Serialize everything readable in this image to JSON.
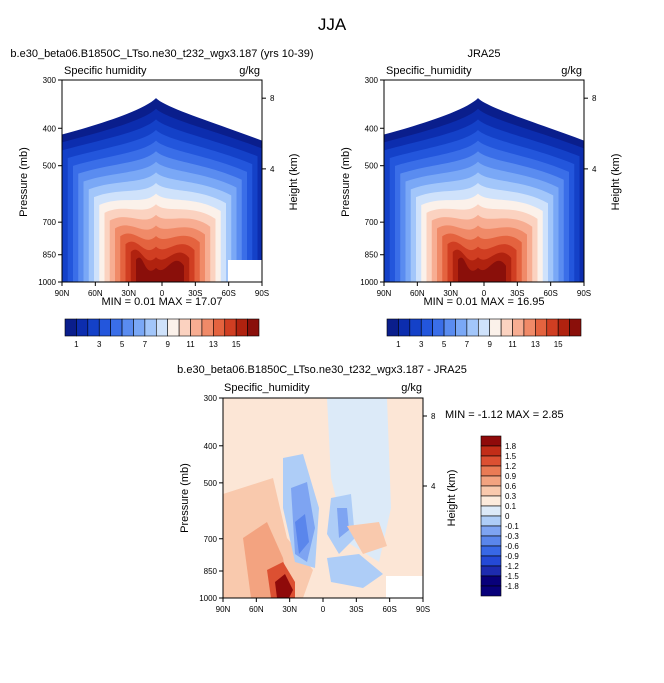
{
  "figure": {
    "title": "JJA"
  },
  "colors": {
    "sequential": [
      "#0a1e8c",
      "#0c2dae",
      "#1441c8",
      "#2356dc",
      "#3a6ee8",
      "#5a8cf0",
      "#7aa8f6",
      "#a2c6fa",
      "#cfe2fb",
      "#fbf1ea",
      "#fbd2c0",
      "#f7ad92",
      "#f08a68",
      "#e4633f",
      "#d03e22",
      "#b0220f",
      "#8a0f0a"
    ],
    "diverging": [
      "#08007a",
      "#1d2bb0",
      "#2449d6",
      "#3868e6",
      "#5a86ec",
      "#7ea4f2",
      "#aecdf7",
      "#dceaf8",
      "#fcebdc",
      "#f9c9ad",
      "#f3a380",
      "#ea7b55",
      "#dc5032",
      "#c22d18",
      "#8f0a0a"
    ]
  },
  "chart_data": [
    {
      "type": "heatmap",
      "panel": "model",
      "title": "b.e30_beta06.B1850C_LTso.ne30_t232_wgx3.187 (yrs 10-39)",
      "left_label": "Specific humidity",
      "right_label": "g/kg",
      "ylabel": "Pressure (mb)",
      "y2label": "Height (km)",
      "x_ticks": [
        "90N",
        "60N",
        "30N",
        "0",
        "30S",
        "60S",
        "90S"
      ],
      "x_tick_values": [
        90,
        60,
        30,
        0,
        -30,
        -60,
        -90
      ],
      "y_ticks": [
        "300",
        "400",
        "500",
        "700",
        "850",
        "1000"
      ],
      "y_tick_values": [
        300,
        400,
        500,
        700,
        850,
        1000
      ],
      "y2_ticks": [
        "8",
        "4"
      ],
      "y2_tick_values": [
        8,
        4
      ],
      "xlim": [
        90,
        -90
      ],
      "ylim": [
        1000,
        300
      ],
      "y_scale": "log",
      "stats": "MIN =  0.01  MAX =  17.07",
      "min": 0.01,
      "max": 17.07,
      "colorbar_labels": [
        "1",
        "3",
        "5",
        "7",
        "9",
        "11",
        "13",
        "15"
      ],
      "colorbar_levels": [
        0,
        1,
        2,
        3,
        4,
        5,
        6,
        7,
        8,
        9,
        10,
        11,
        12,
        13,
        14,
        15,
        16
      ],
      "masked": {
        "lat_range": [
          -55,
          -90
        ],
        "p_range": [
          1000,
          880
        ]
      }
    },
    {
      "type": "heatmap",
      "panel": "obs",
      "title": "JRA25",
      "left_label": "Specific_humidity",
      "right_label": "g/kg",
      "ylabel": "Pressure (mb)",
      "y2label": "Height (km)",
      "x_ticks": [
        "90N",
        "60N",
        "30N",
        "0",
        "30S",
        "60S",
        "90S"
      ],
      "x_tick_values": [
        90,
        60,
        30,
        0,
        -30,
        -60,
        -90
      ],
      "y_ticks": [
        "300",
        "400",
        "500",
        "700",
        "850",
        "1000"
      ],
      "y_tick_values": [
        300,
        400,
        500,
        700,
        850,
        1000
      ],
      "y2_ticks": [
        "8",
        "4"
      ],
      "y2_tick_values": [
        8,
        4
      ],
      "xlim": [
        90,
        -90
      ],
      "ylim": [
        1000,
        300
      ],
      "y_scale": "log",
      "stats": "MIN =  0.01  MAX =  16.95",
      "min": 0.01,
      "max": 16.95,
      "colorbar_labels": [
        "1",
        "3",
        "5",
        "7",
        "9",
        "11",
        "13",
        "15"
      ],
      "colorbar_levels": [
        0,
        1,
        2,
        3,
        4,
        5,
        6,
        7,
        8,
        9,
        10,
        11,
        12,
        13,
        14,
        15,
        16
      ]
    },
    {
      "type": "heatmap",
      "panel": "diff",
      "title": "b.e30_beta06.B1850C_LTso.ne30_t232_wgx3.187 - JRA25",
      "left_label": "Specific_humidity",
      "right_label": "g/kg",
      "ylabel": "Pressure (mb)",
      "y2label": "Height (km)",
      "x_ticks": [
        "90N",
        "60N",
        "30N",
        "0",
        "30S",
        "60S",
        "90S"
      ],
      "x_tick_values": [
        90,
        60,
        30,
        0,
        -30,
        -60,
        -90
      ],
      "y_ticks": [
        "300",
        "400",
        "500",
        "700",
        "850",
        "1000"
      ],
      "y_tick_values": [
        300,
        400,
        500,
        700,
        850,
        1000
      ],
      "y2_ticks": [
        "8",
        "4"
      ],
      "y2_tick_values": [
        8,
        4
      ],
      "xlim": [
        90,
        -90
      ],
      "ylim": [
        1000,
        300
      ],
      "y_scale": "log",
      "stats": "MIN = -1.12  MAX =  2.85",
      "min": -1.12,
      "max": 2.85,
      "colorbar_labels": [
        "1.8",
        "1.5",
        "1.2",
        "0.9",
        "0.6",
        "0.3",
        "0.1",
        "0",
        "-0.1",
        "-0.3",
        "-0.6",
        "-0.9",
        "-1.2",
        "-1.5",
        "-1.8"
      ],
      "colorbar_orientation": "vertical",
      "masked": {
        "lat_range": [
          -55,
          -90
        ],
        "p_range": [
          1000,
          880
        ]
      }
    }
  ]
}
